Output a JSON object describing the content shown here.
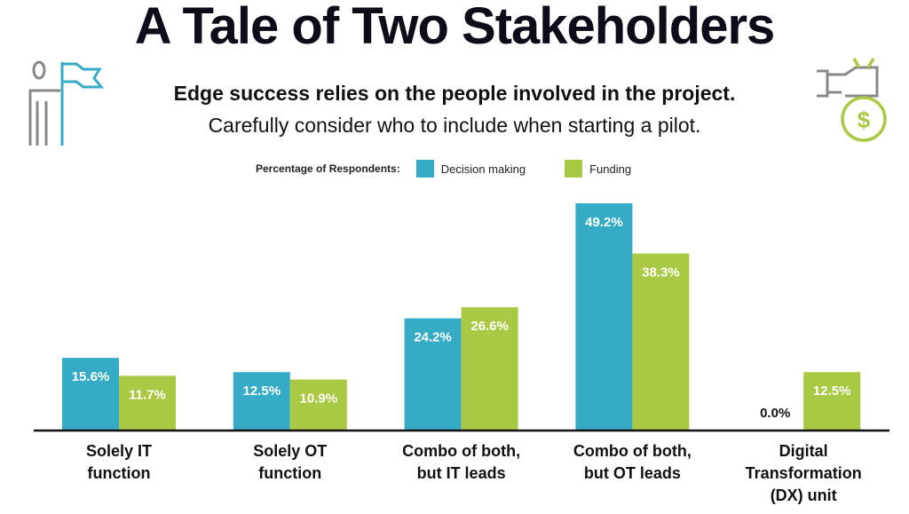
{
  "title": "A Tale of Two Stakeholders",
  "subtitle_bold": "Edge success relies on the people involved in the project.",
  "subtitle": "Carefully consider who to include when starting a pilot.",
  "legend": {
    "label": "Percentage of Respondents:",
    "items": [
      {
        "name": "Decision making",
        "color": "#36abc5"
      },
      {
        "name": "Funding",
        "color": "#a9c843"
      }
    ]
  },
  "chart_data": {
    "type": "bar",
    "title": "A Tale of Two Stakeholders",
    "categories": [
      "Solely IT function",
      "Solely OT function",
      "Combo of both, but IT leads",
      "Combo of both, but OT leads",
      "Digital Transformation (DX) unit"
    ],
    "category_lines": [
      [
        "Solely IT",
        "function"
      ],
      [
        "Solely OT",
        "function"
      ],
      [
        "Combo of both,",
        "but IT leads"
      ],
      [
        "Combo of both,",
        "but OT leads"
      ],
      [
        "Digital",
        "Transformation",
        "(DX) unit"
      ]
    ],
    "series": [
      {
        "name": "Decision making",
        "values": [
          15.6,
          12.5,
          24.2,
          49.2,
          0.0
        ],
        "labels": [
          "15.6%",
          "12.5%",
          "24.2%",
          "49.2%",
          "0.0%"
        ]
      },
      {
        "name": "Funding",
        "values": [
          11.7,
          10.9,
          26.6,
          38.3,
          12.5
        ],
        "labels": [
          "11.7%",
          "10.9%",
          "26.6%",
          "38.3%",
          "12.5%"
        ]
      }
    ],
    "ylim": [
      0,
      50
    ],
    "xlabel": "",
    "ylabel": "",
    "grid": false
  }
}
